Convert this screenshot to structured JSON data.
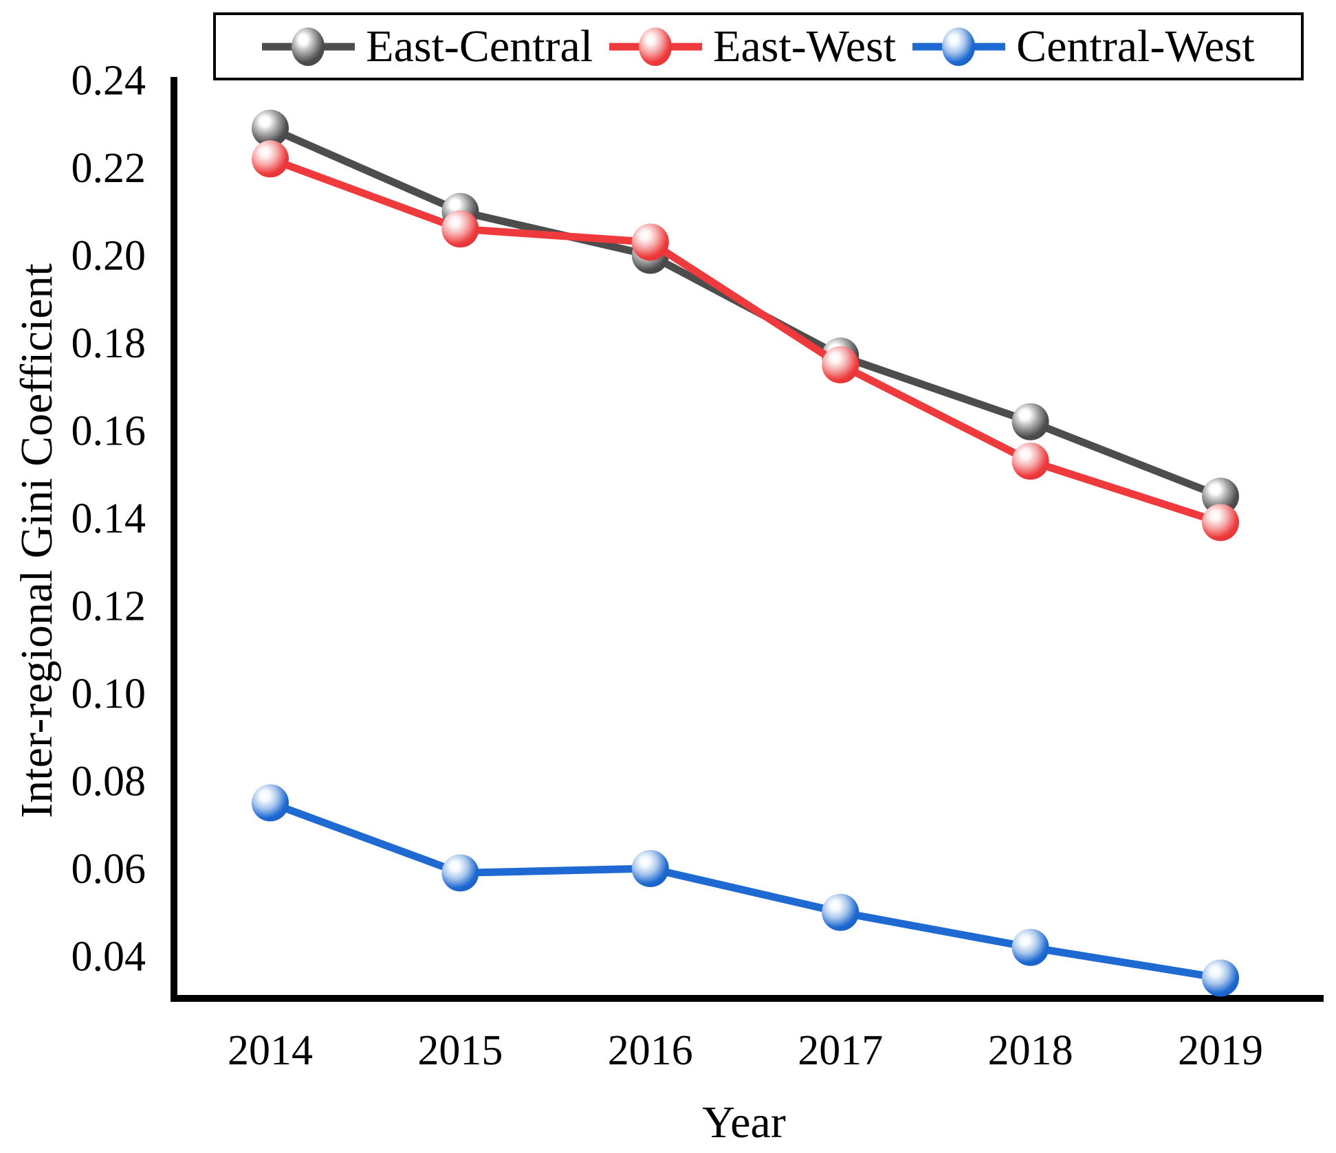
{
  "figure": {
    "background": "#ffffff",
    "axis_color": "#000000",
    "text_color": "#000000"
  },
  "chart_data": {
    "type": "line",
    "title": "",
    "xlabel": "Year",
    "ylabel": "Inter-regional Gini Coefficient",
    "x": [
      2014,
      2015,
      2016,
      2017,
      2018,
      2019
    ],
    "x_tick_labels": [
      "2014",
      "2015",
      "2016",
      "2017",
      "2018",
      "2019"
    ],
    "y_tick_labels": [
      "0.24",
      "0.22",
      "0.20",
      "0.18",
      "0.16",
      "0.14",
      "0.12",
      "0.10",
      "0.08",
      "0.06",
      "0.04"
    ],
    "ylim": [
      0.03,
      0.24
    ],
    "xlim": [
      2013.5,
      2019.5
    ],
    "grid": false,
    "legend_position": "top",
    "marker_style": "glossy-sphere",
    "series": [
      {
        "name": "East-Central",
        "color": "#4D4D4D",
        "edge_color": "#424242",
        "highlight_color": "#A8A8A8",
        "core_color": "#FFFFFF",
        "values": [
          0.229,
          0.21,
          0.2,
          0.177,
          0.162,
          0.145
        ]
      },
      {
        "name": "East-West",
        "color": "#EE3A3C",
        "edge_color": "#DC3133",
        "highlight_color": "#F5A8A8",
        "core_color": "#FFF4F4",
        "values": [
          0.222,
          0.206,
          0.203,
          0.175,
          0.153,
          0.139
        ]
      },
      {
        "name": "Central-West",
        "color": "#1E69D2",
        "edge_color": "#1859B8",
        "highlight_color": "#A9C6EC",
        "core_color": "#F4FAFF",
        "values": [
          0.075,
          0.059,
          0.06,
          0.05,
          0.042,
          0.035
        ]
      }
    ]
  }
}
